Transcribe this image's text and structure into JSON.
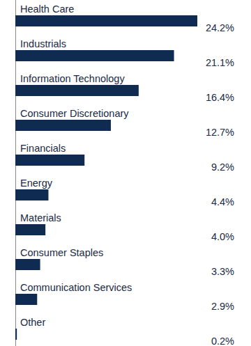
{
  "chart_data": {
    "type": "bar",
    "orientation": "horizontal",
    "categories": [
      "Health Care",
      "Industrials",
      "Information Technology",
      "Consumer Discretionary",
      "Financials",
      "Energy",
      "Materials",
      "Consumer Staples",
      "Communication Services",
      "Other"
    ],
    "values": [
      24.2,
      21.1,
      16.4,
      12.7,
      9.2,
      4.4,
      4.0,
      3.3,
      2.9,
      0.2
    ],
    "value_labels": [
      "24.2%",
      "21.1%",
      "16.4%",
      "12.7%",
      "9.2%",
      "4.4%",
      "4.0%",
      "3.3%",
      "2.9%",
      "0.2%"
    ],
    "color": "#0f2b52",
    "xlim": [
      0,
      24.2
    ],
    "data_labels": true,
    "tick_labels": false,
    "grid": false
  }
}
